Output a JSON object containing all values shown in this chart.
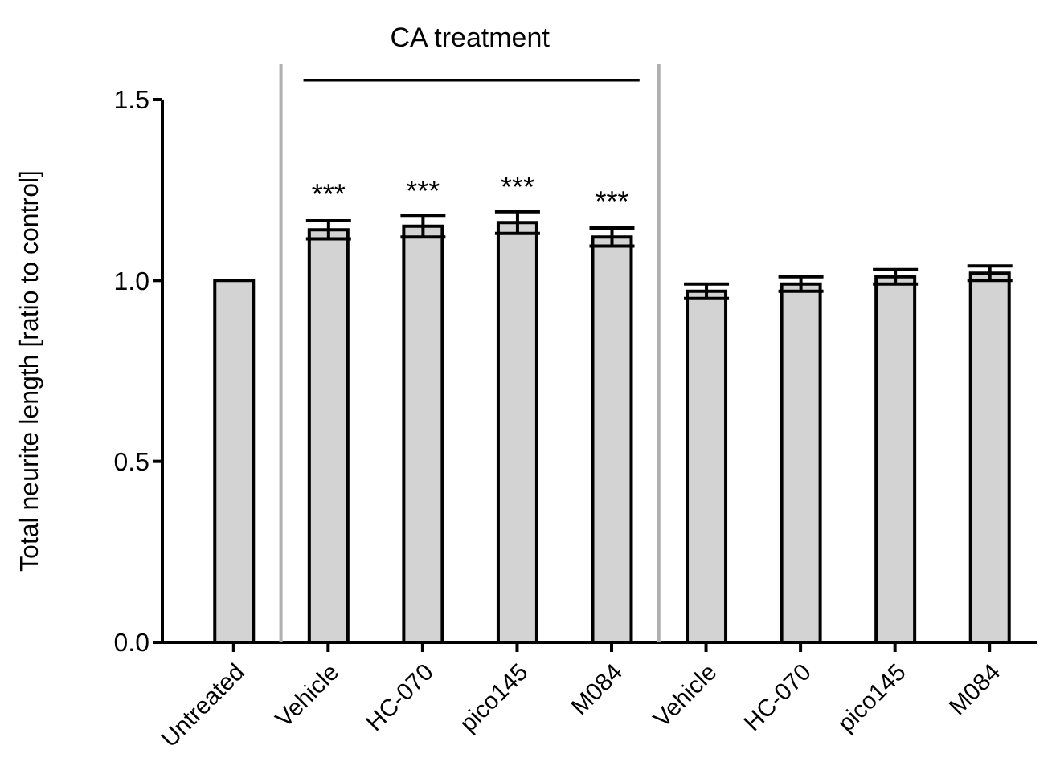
{
  "chart_data": {
    "type": "bar",
    "ylabel": "Total neurite length [ratio to control]",
    "categories": [
      "Untreated",
      "Vehicle",
      "HC-070",
      "pico145",
      "M084",
      "Vehicle",
      "HC-070",
      "pico145",
      "M084"
    ],
    "values": [
      1.0,
      1.14,
      1.15,
      1.16,
      1.12,
      0.97,
      0.99,
      1.01,
      1.02
    ],
    "errors": [
      null,
      0.025,
      0.03,
      0.03,
      0.025,
      0.02,
      0.02,
      0.02,
      0.02
    ],
    "color": "#d3d3d3",
    "ylim": [
      0,
      1.5
    ],
    "yticks": [
      {
        "value": 0,
        "label": "0.0"
      },
      {
        "value": 0.5,
        "label": "0.5"
      },
      {
        "value": 1,
        "label": "1.0"
      },
      {
        "value": 1.5,
        "label": "1.5"
      }
    ],
    "grid": false,
    "legend": false,
    "value_labels": [
      null,
      "***",
      "***",
      "***",
      "***",
      null,
      null,
      null,
      null
    ],
    "annotations": [
      "CA treatment"
    ]
  }
}
